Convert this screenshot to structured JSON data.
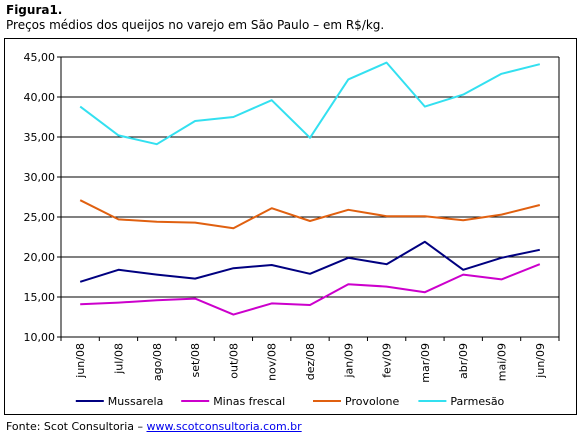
{
  "figure": {
    "label": "Figura1.",
    "caption": "Preços médios dos queijos no varejo em São Paulo – em R$/kg."
  },
  "source": {
    "prefix": "Fonte: Scot Consultoria – ",
    "link": "www.scotconsultoria.com.br"
  },
  "chart_data": {
    "type": "line",
    "title": "",
    "xlabel": "",
    "ylabel": "",
    "categories": [
      "jun/08",
      "jul/08",
      "ago/08",
      "set/08",
      "out/08",
      "nov/08",
      "dez/08",
      "jan/09",
      "fev/09",
      "mar/09",
      "abr/09",
      "mai/09",
      "jun/09"
    ],
    "ylim": [
      10,
      45
    ],
    "yticks": [
      10,
      15,
      20,
      25,
      30,
      35,
      40,
      45
    ],
    "ytick_labels": [
      "10,00",
      "15,00",
      "20,00",
      "25,00",
      "30,00",
      "35,00",
      "40,00",
      "45,00"
    ],
    "grid": "horizontal",
    "legend_position": "bottom",
    "series": [
      {
        "name": "Mussarela",
        "color": "#000080",
        "values": [
          16.9,
          18.4,
          17.8,
          17.3,
          18.6,
          19.0,
          17.9,
          19.9,
          19.1,
          21.9,
          18.4,
          19.9,
          20.9
        ]
      },
      {
        "name": "Minas frescal",
        "color": "#cc00cc",
        "values": [
          14.1,
          14.3,
          14.6,
          14.8,
          12.8,
          14.2,
          14.0,
          16.6,
          16.3,
          15.6,
          17.8,
          17.2,
          19.1
        ]
      },
      {
        "name": "Provolone",
        "color": "#e06010",
        "values": [
          27.1,
          24.7,
          24.4,
          24.3,
          23.6,
          26.1,
          24.5,
          25.9,
          25.1,
          25.1,
          24.6,
          25.3,
          26.5
        ]
      },
      {
        "name": "Parmesão",
        "color": "#33e0f0",
        "values": [
          38.8,
          35.2,
          34.1,
          37.0,
          37.5,
          39.6,
          34.9,
          42.2,
          44.3,
          38.8,
          40.3,
          42.9,
          44.1
        ]
      }
    ]
  }
}
